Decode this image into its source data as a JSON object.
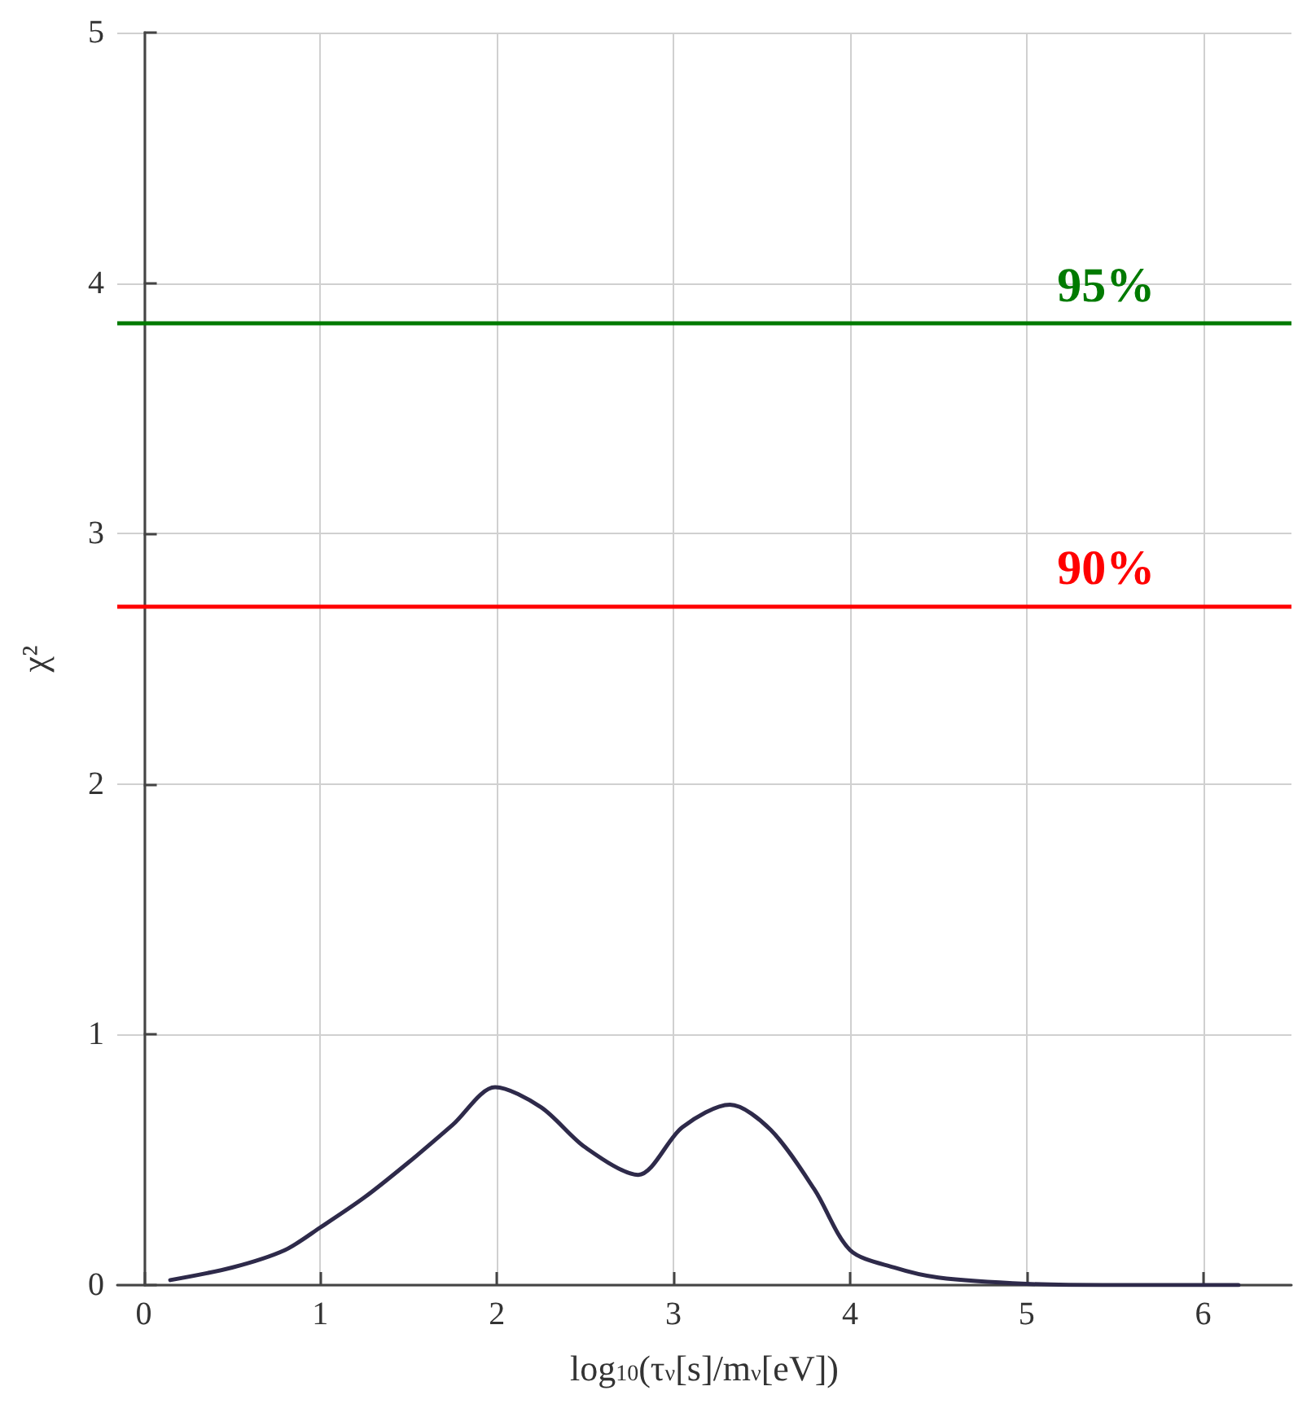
{
  "chart_data": {
    "type": "line",
    "xlabel": "log$_{10}$(τ$_{ν}$[s]/m$_{ν}$[eV])",
    "ylabel": "χ²",
    "xlim": [
      -0.15,
      6.5
    ],
    "xticks": [
      0,
      1,
      2,
      3,
      4,
      5,
      6
    ],
    "ylim": [
      0,
      5
    ],
    "yticks": [
      0,
      1,
      2,
      3,
      4,
      5
    ],
    "grid": true,
    "marker": "none",
    "line_style": "solid",
    "series": [
      {
        "color": "#2e2a4a",
        "x": [
          0.15,
          0.5,
          0.8,
          1,
          1.25,
          1.5,
          1.75,
          1.99,
          2.25,
          2.5,
          2.8,
          3.05,
          3.32,
          3.55,
          3.8,
          4,
          4.25,
          4.5,
          5,
          5.5,
          6.2
        ],
        "values": [
          0.02,
          0.07,
          0.14,
          0.23,
          0.35,
          0.49,
          0.64,
          0.79,
          0.71,
          0.55,
          0.44,
          0.63,
          0.72,
          0.62,
          0.38,
          0.14,
          0.07,
          0.03,
          0.005,
          0,
          0
        ]
      }
    ],
    "ref_lines": [
      {
        "axis": "y",
        "value": 3.84,
        "color": "#007a00"
      },
      {
        "axis": "y",
        "value": 2.71,
        "color": "#ff0000"
      }
    ],
    "annotations": [
      {
        "text": "95%",
        "x": 5.45,
        "y": 3.84
      },
      {
        "text": "90%",
        "x": 5.45,
        "y": 2.71
      }
    ]
  }
}
